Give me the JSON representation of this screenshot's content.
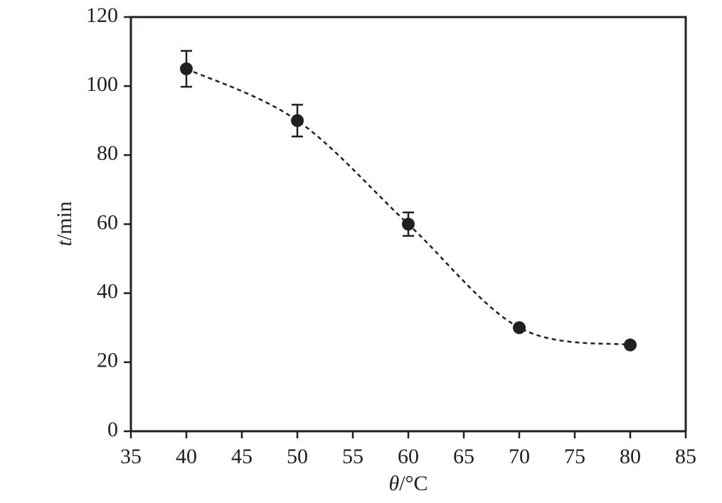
{
  "chart_data": {
    "type": "scatter",
    "xlabel_var": "θ",
    "xlabel_unit": "/°C",
    "ylabel_var": "t",
    "ylabel_unit": "/min",
    "xlim": [
      35,
      85
    ],
    "ylim": [
      0,
      120
    ],
    "x_ticks": [
      35,
      40,
      45,
      50,
      55,
      60,
      65,
      70,
      75,
      80,
      85
    ],
    "y_ticks": [
      0,
      20,
      40,
      60,
      80,
      100,
      120
    ],
    "grid": false,
    "series": [
      {
        "x": [
          40,
          50,
          60,
          70,
          80
        ],
        "y": [
          105,
          90,
          60,
          30,
          25
        ],
        "error": [
          5.2,
          4.6,
          3.4,
          null,
          null
        ],
        "marker": "filled-circle",
        "trend_line": "dashed-smooth"
      }
    ],
    "colors": {
      "ink": "#231f20"
    }
  }
}
